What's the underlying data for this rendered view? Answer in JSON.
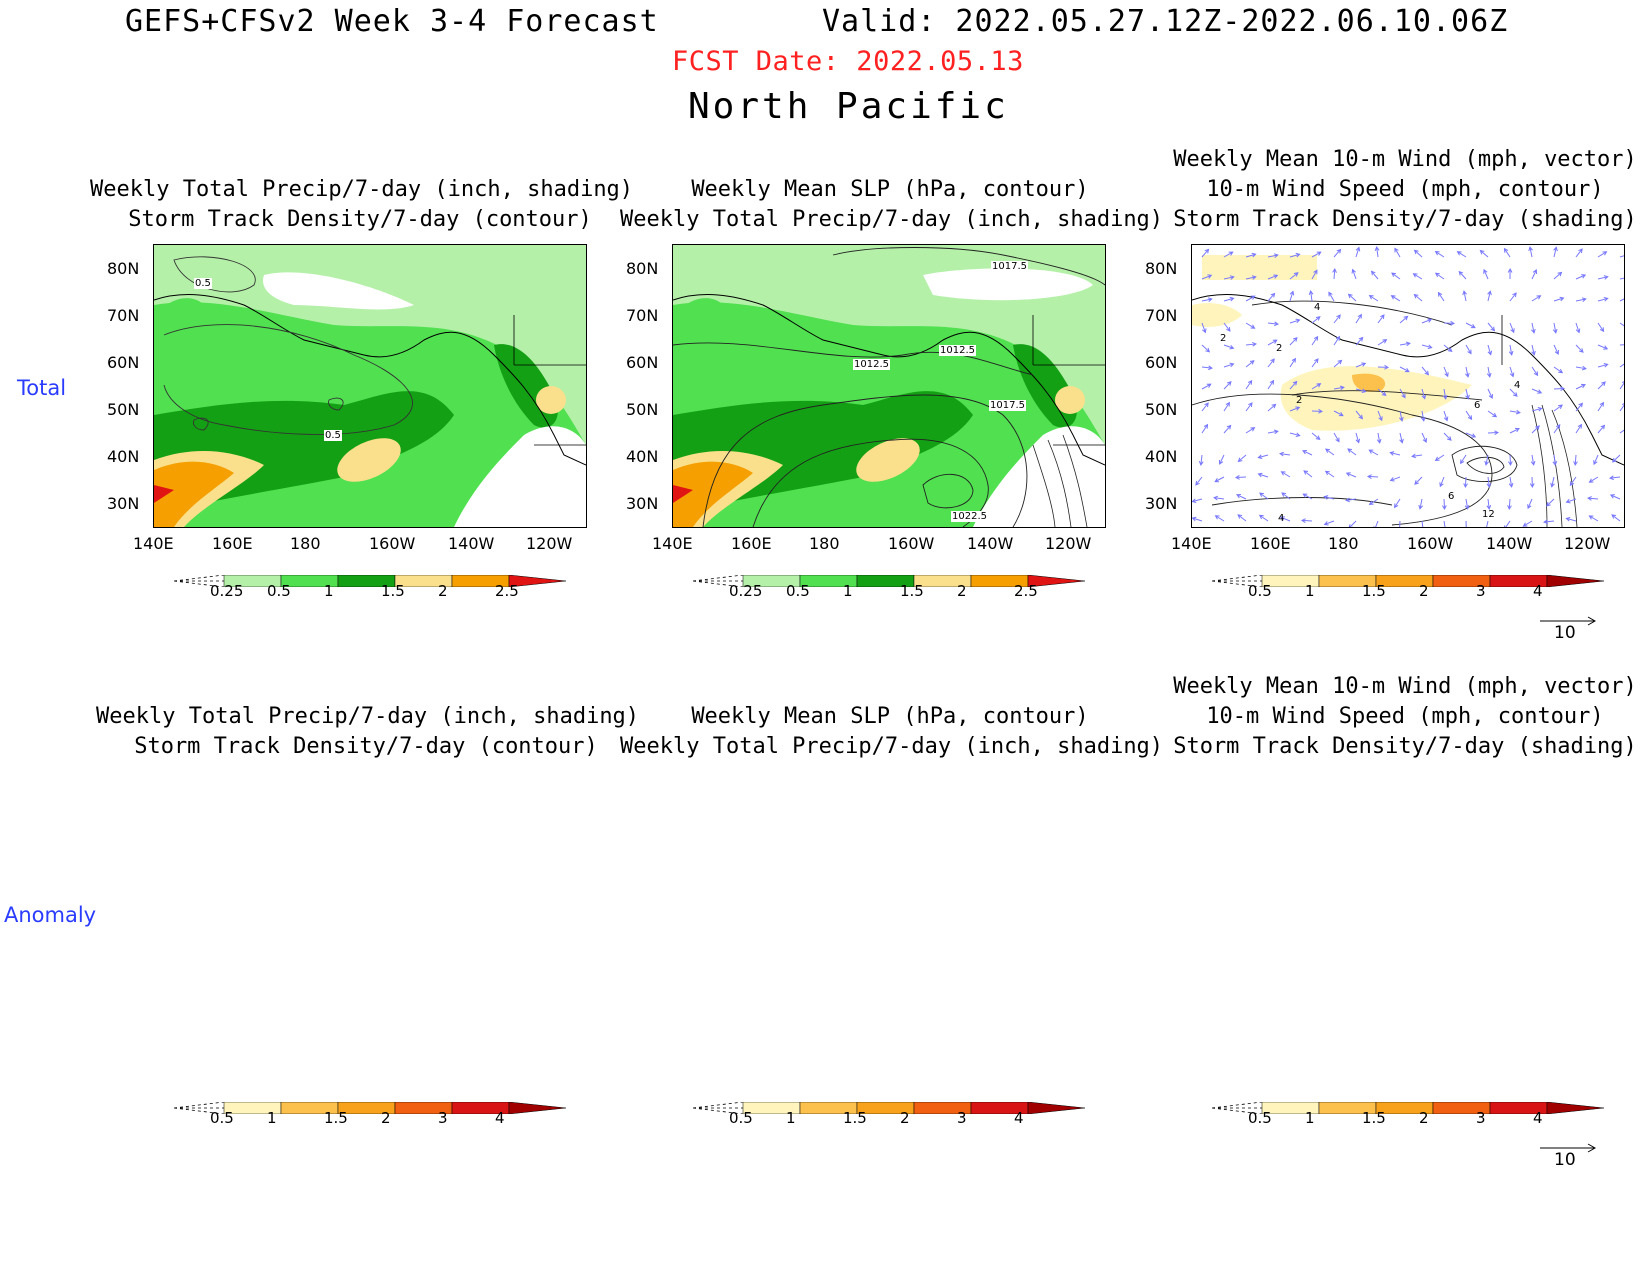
{
  "header": {
    "title": "GEFS+CFSv2 Week 3-4 Forecast",
    "valid": "Valid: 2022.05.27.12Z-2022.06.10.06Z",
    "fcst_date": "FCST Date: 2022.05.13",
    "region": "North Pacific"
  },
  "rows": {
    "total": "Total",
    "anomaly": "Anomaly"
  },
  "panel_titles": {
    "precip": [
      "Weekly Total Precip/7-day (inch, shading)",
      "Storm Track Density/7-day (contour)"
    ],
    "slp": [
      "Weekly Mean SLP (hPa, contour)",
      "Weekly Total Precip/7-day (inch, shading)"
    ],
    "wind": [
      "Weekly Mean 10-m Wind (mph, vector)",
      "10-m Wind Speed (mph, contour)",
      "Storm Track Density/7-day (shading)"
    ]
  },
  "axes": {
    "lat_labels": [
      "80N",
      "70N",
      "60N",
      "50N",
      "40N",
      "30N"
    ],
    "lon_labels": [
      "140E",
      "160E",
      "180",
      "160W",
      "140W",
      "120W"
    ]
  },
  "colorbars": {
    "precip": {
      "labels": [
        "0.25",
        "0.5",
        "1",
        "1.5",
        "2",
        "2.5"
      ],
      "colors": [
        "#b4f0a8",
        "#50e050",
        "#14a014",
        "#fae08c",
        "#f5a000",
        "#e11414"
      ]
    },
    "density": {
      "labels": [
        "0.5",
        "1",
        "1.5",
        "2",
        "3",
        "4"
      ],
      "colors": [
        "#fff5bc",
        "#fbc14c",
        "#f7a21a",
        "#f06010",
        "#d81414",
        "#a00000"
      ]
    }
  },
  "contour_labels": {
    "precip_panel": [
      "0.5",
      "0.5"
    ],
    "slp_panel": [
      "1017.5",
      "1012.5",
      "1012.5",
      "1017.5",
      "1022.5"
    ],
    "wind_panel": [
      "4",
      "2",
      "2",
      "2",
      "6",
      "4",
      "6",
      "12",
      "4"
    ]
  },
  "vector_reference": "10",
  "colors": {
    "row_label": "#2a3cff",
    "fcst_date": "#ff2020",
    "wind_vector": "#7878ff"
  }
}
